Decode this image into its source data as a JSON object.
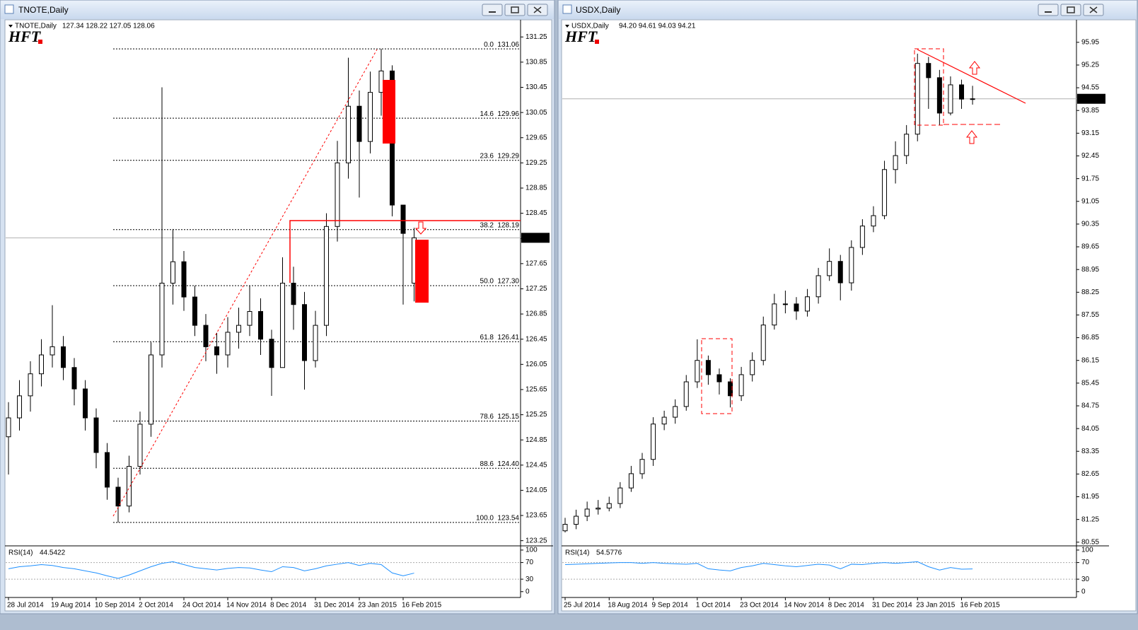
{
  "chart_data": [
    {
      "type": "candlestick",
      "symbol": "TNOTE,Daily",
      "info_ohlc": "127.34 128.22 127.05 128.06",
      "logo": "HFT",
      "categories": [
        "28 Jul 2014",
        null,
        null,
        null,
        "19 Aug 2014",
        null,
        null,
        null,
        "10 Sep 2014",
        null,
        null,
        null,
        "2 Oct 2014",
        null,
        null,
        null,
        "24 Oct 2014",
        null,
        null,
        null,
        "14 Nov 2014",
        null,
        null,
        null,
        "8 Dec 2014",
        null,
        null,
        null,
        "31 Dec 2014",
        null,
        null,
        null,
        "23 Jan 2015",
        null,
        null,
        null,
        "16 Feb 2015",
        null
      ],
      "open": [
        124.9,
        125.2,
        125.55,
        125.9,
        126.2,
        126.33,
        126.0,
        125.66,
        125.2,
        124.65,
        124.1,
        123.8,
        124.43,
        125.1,
        126.2,
        127.34,
        127.68,
        127.12,
        126.67,
        126.33,
        126.2,
        126.56,
        126.67,
        126.89,
        126.45,
        126.0,
        127.34,
        127.0,
        126.11,
        126.67,
        128.24,
        129.25,
        130.15,
        129.59,
        130.37,
        130.71,
        128.58,
        127.34
      ],
      "high": [
        125.45,
        125.8,
        126.1,
        126.45,
        126.99,
        126.5,
        126.15,
        125.8,
        125.35,
        124.8,
        124.25,
        124.6,
        125.3,
        126.4,
        130.45,
        128.2,
        127.85,
        127.3,
        126.85,
        126.55,
        126.8,
        126.95,
        127.3,
        127.1,
        126.6,
        127.75,
        127.6,
        127.2,
        126.9,
        128.45,
        129.6,
        130.92,
        130.4,
        130.7,
        131.06,
        130.8,
        128.5,
        128.22
      ],
      "low": [
        124.3,
        125.0,
        125.3,
        125.7,
        126.0,
        125.8,
        125.4,
        125.0,
        124.4,
        123.9,
        123.54,
        123.7,
        124.3,
        124.9,
        126.0,
        127.0,
        126.9,
        126.5,
        126.1,
        125.9,
        126.0,
        126.3,
        126.5,
        126.2,
        125.55,
        126.0,
        126.6,
        125.65,
        126.0,
        126.5,
        128.0,
        129.0,
        128.7,
        129.4,
        130.0,
        128.4,
        127.0,
        127.05
      ],
      "close": [
        125.2,
        125.55,
        125.9,
        126.2,
        126.33,
        126.0,
        125.66,
        125.2,
        124.65,
        124.1,
        123.8,
        124.43,
        125.1,
        126.2,
        127.34,
        127.68,
        127.12,
        126.67,
        126.33,
        126.2,
        126.56,
        126.67,
        126.89,
        126.45,
        126.0,
        127.34,
        127.0,
        126.11,
        126.67,
        128.24,
        129.25,
        130.15,
        129.59,
        130.37,
        130.71,
        128.58,
        128.13,
        128.06
      ],
      "ylim": [
        123.19,
        131.5
      ],
      "yticks": [
        123.25,
        123.65,
        124.05,
        124.45,
        124.85,
        125.25,
        125.65,
        126.05,
        126.45,
        126.85,
        127.25,
        127.65,
        128.05,
        128.45,
        128.85,
        129.25,
        129.65,
        130.05,
        130.45,
        130.85,
        131.25
      ],
      "current": 128.06,
      "fib": [
        {
          "level": "0.0",
          "price": 131.06
        },
        {
          "level": "14.6",
          "price": 129.96
        },
        {
          "level": "23.6",
          "price": 129.29
        },
        {
          "level": "38.2",
          "price": 128.19
        },
        {
          "level": "50.0",
          "price": {
            "value": 127.3,
            "label": "127.30"
          }
        },
        {
          "level": "61.8",
          "price": 126.41
        },
        {
          "level": "78.6",
          "price": 125.15
        },
        {
          "level": "88.6",
          "price": {
            "value": 124.4,
            "label": "124.40"
          }
        },
        {
          "level": "100.0",
          "price": 123.54
        }
      ],
      "rsi": {
        "label": "RSI(14)",
        "value": 44.5422,
        "color": "#1e90ff",
        "ylim": [
          -14,
          105
        ],
        "yticks": [
          0,
          30,
          70,
          100
        ],
        "values": [
          55,
          60,
          62,
          65,
          63,
          58,
          55,
          50,
          45,
          38,
          32,
          40,
          50,
          60,
          68,
          72,
          65,
          58,
          55,
          52,
          56,
          58,
          57,
          52,
          48,
          60,
          58,
          50,
          55,
          62,
          66,
          70,
          63,
          68,
          65,
          45,
          38,
          44.54
        ]
      }
    },
    {
      "type": "candlestick",
      "symbol": "USDX,Daily",
      "info_ohlc": "94.20 94.61 94.03 94.21",
      "logo": "HFT",
      "categories": [
        "25 Jul 2014",
        null,
        null,
        null,
        "18 Aug 2014",
        null,
        null,
        null,
        "9 Sep 2014",
        null,
        null,
        null,
        "1 Oct 2014",
        null,
        null,
        null,
        "23 Oct 2014",
        null,
        null,
        null,
        "14 Nov 2014",
        null,
        null,
        null,
        "8 Dec 2014",
        null,
        null,
        null,
        "31 Dec 2014",
        null,
        null,
        null,
        "23 Jan 2015",
        null,
        null,
        null,
        "16 Feb 2015",
        null
      ],
      "open": [
        80.9,
        81.1,
        81.35,
        81.57,
        81.6,
        81.74,
        82.22,
        82.66,
        83.1,
        84.19,
        84.4,
        84.73,
        85.49,
        86.15,
        85.71,
        85.49,
        85.06,
        85.71,
        86.15,
        87.24,
        87.89,
        87.89,
        87.67,
        88.11,
        88.76,
        89.2,
        88.54,
        89.63,
        90.29,
        90.61,
        92.03,
        92.46,
        93.12,
        95.3,
        94.86,
        93.77,
        94.64,
        94.2
      ],
      "high": [
        81.3,
        81.55,
        81.8,
        81.85,
        81.95,
        82.4,
        82.9,
        83.3,
        84.4,
        84.6,
        84.95,
        85.7,
        86.8,
        86.3,
        85.9,
        85.6,
        85.95,
        86.4,
        87.5,
        88.2,
        88.3,
        88.1,
        88.35,
        89.0,
        89.6,
        89.4,
        89.85,
        90.5,
        90.9,
        92.3,
        92.9,
        93.4,
        95.6,
        95.5,
        95.1,
        94.9,
        94.8,
        94.61
      ],
      "low": [
        80.85,
        80.95,
        81.2,
        81.4,
        81.5,
        81.6,
        82.1,
        82.5,
        82.9,
        84.0,
        84.2,
        84.6,
        85.3,
        85.4,
        85.1,
        84.7,
        84.9,
        85.5,
        86.0,
        87.1,
        87.6,
        87.4,
        87.5,
        87.9,
        88.6,
        88.0,
        88.3,
        89.4,
        90.1,
        90.5,
        91.6,
        92.2,
        92.9,
        93.9,
        93.4,
        93.7,
        93.9,
        94.03
      ],
      "close": [
        81.1,
        81.35,
        81.57,
        81.6,
        81.74,
        82.22,
        82.66,
        83.1,
        84.19,
        84.4,
        84.73,
        85.49,
        86.15,
        85.71,
        85.49,
        85.06,
        85.71,
        86.15,
        87.24,
        87.89,
        87.89,
        87.67,
        88.11,
        88.76,
        89.2,
        88.54,
        89.63,
        90.29,
        90.61,
        92.03,
        92.46,
        93.12,
        95.3,
        94.86,
        93.77,
        94.64,
        94.2,
        94.21
      ],
      "ylim": [
        80.48,
        96.6
      ],
      "yticks": [
        80.55,
        81.25,
        81.95,
        82.65,
        83.35,
        84.05,
        84.75,
        85.45,
        86.15,
        86.85,
        87.55,
        88.25,
        88.95,
        89.65,
        90.35,
        91.05,
        91.75,
        92.45,
        93.15,
        93.85,
        94.55,
        95.25,
        95.95
      ],
      "current": 94.21,
      "rsi": {
        "label": "RSI(14)",
        "value": 54.5776,
        "color": "#1e90ff",
        "ylim": [
          -14,
          105
        ],
        "yticks": [
          0,
          30,
          70,
          100
        ],
        "values": [
          65,
          66,
          67,
          68,
          69,
          70,
          70,
          68,
          70,
          68,
          67,
          66,
          68,
          55,
          52,
          50,
          58,
          62,
          68,
          65,
          62,
          60,
          63,
          66,
          64,
          55,
          66,
          65,
          68,
          70,
          68,
          70,
          72,
          60,
          52,
          58,
          54,
          54.58
        ]
      }
    }
  ]
}
